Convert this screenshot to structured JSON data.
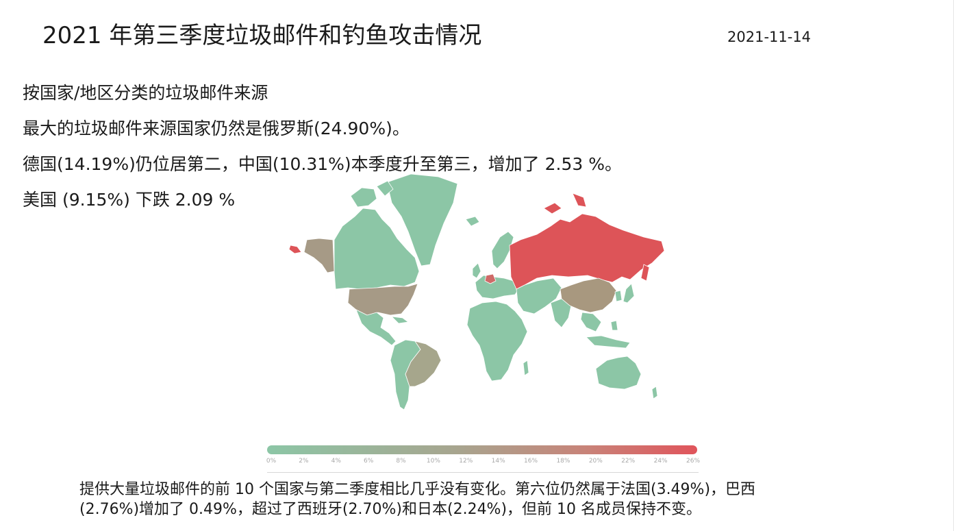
{
  "slide": {
    "title": "2021 年第三季度垃圾邮件和钓鱼攻击情况",
    "date": "2021-11-14",
    "paragraphs": [
      "按国家/地区分类的垃圾邮件来源",
      "最大的垃圾邮件来源国家仍然是俄罗斯(24.90%)。",
      "德国(14.19%)仍位居第二，中国(10.31%)本季度升至第三，增加了 2.53 %。",
      "美国 (9.15%) 下跌 2.09 %"
    ],
    "footer_note_line1": "提供大量垃圾邮件的前 10 个国家与第二季度相比几乎没有变化。第六位仍然属于法国(3.49%)，巴西",
    "footer_note_line2": "(2.76%)增加了 0.49%，超过了西班牙(2.70%)和日本(2.24%)，但前 10 名成员保持不变。"
  },
  "map": {
    "legend_ticks": [
      "0%",
      "2%",
      "4%",
      "6%",
      "8%",
      "10%",
      "12%",
      "14%",
      "16%",
      "18%",
      "20%",
      "22%",
      "24%",
      "26%"
    ],
    "legend_colors": {
      "low": "#8cc6a6",
      "mid": "#a8a48e",
      "high": "#e0545b"
    },
    "regions": [
      {
        "id": "russia",
        "share": 24.9,
        "color": "#dd5458"
      },
      {
        "id": "germany",
        "share": 14.19,
        "color": "#cf6a68"
      },
      {
        "id": "china",
        "share": 10.31,
        "color": "#a8987f"
      },
      {
        "id": "usa",
        "share": 9.15,
        "color": "#a69a86"
      },
      {
        "id": "alaska",
        "share": 9.15,
        "color": "#a69a86"
      },
      {
        "id": "brazil",
        "share": 2.76,
        "color": "#a6a68c"
      },
      {
        "id": "other",
        "color": "#8cc6a6"
      }
    ]
  }
}
